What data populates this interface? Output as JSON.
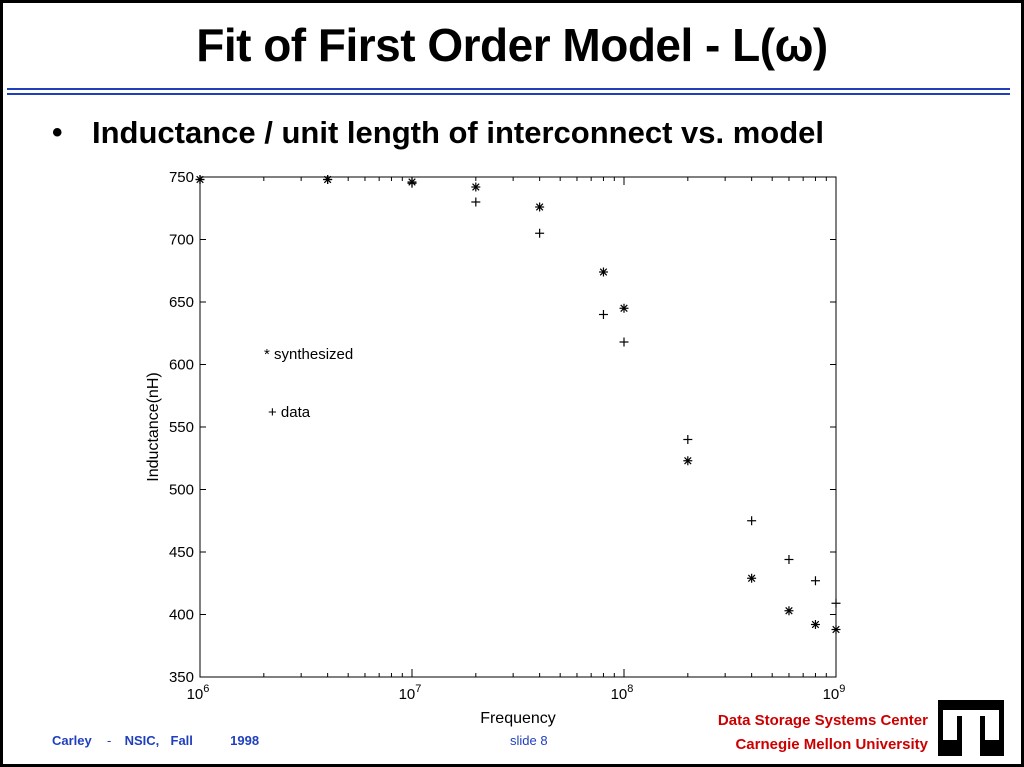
{
  "slide": {
    "title": "Fit of First Order Model - L(ω)",
    "bullet": "Inductance / unit length of interconnect vs. model",
    "footer": {
      "author": "Carley",
      "separator": "-",
      "course": "NSIC,",
      "term": "Fall",
      "year": "1998",
      "slide_label": "slide",
      "slide_number": "8",
      "org_line1": "Data Storage Systems Center",
      "org_line2": "Carnegie Mellon University"
    },
    "colors": {
      "accent": "#1f3fbf",
      "org_text": "#cc0000"
    }
  },
  "chart_data": {
    "type": "scatter",
    "xscale": "log",
    "xlim": [
      1000000,
      1000000000
    ],
    "ylim": [
      350,
      750
    ],
    "xlabel": "Frequency",
    "ylabel": "Inductance(nH)",
    "x_ticks": [
      1000000,
      10000000,
      100000000,
      1000000000
    ],
    "x_tick_labels": [
      {
        "base": "10",
        "exp": "6"
      },
      {
        "base": "10",
        "exp": "7"
      },
      {
        "base": "10",
        "exp": "8"
      },
      {
        "base": "10",
        "exp": "9"
      }
    ],
    "y_ticks": [
      350,
      400,
      450,
      500,
      550,
      600,
      650,
      700,
      750
    ],
    "y_tick_labels": [
      "350",
      "400",
      "450",
      "500",
      "550",
      "600",
      "650",
      "700",
      "750"
    ],
    "annotations": [
      "* synthesized",
      "+ data"
    ],
    "series": [
      {
        "name": "synthesized",
        "marker": "*",
        "x": [
          1000000,
          4000000,
          10000000,
          20000000,
          40000000,
          80000000,
          100000000,
          200000000,
          400000000,
          600000000,
          800000000,
          1000000000
        ],
        "y": [
          748,
          748,
          746,
          742,
          726,
          674,
          645,
          523,
          429,
          403,
          392,
          388
        ]
      },
      {
        "name": "data",
        "marker": "+",
        "x": [
          1000000,
          4000000,
          10000000,
          20000000,
          40000000,
          80000000,
          100000000,
          200000000,
          400000000,
          600000000,
          800000000,
          1000000000
        ],
        "y": [
          748,
          748,
          745,
          730,
          705,
          640,
          618,
          540,
          475,
          444,
          427,
          409
        ]
      }
    ]
  }
}
